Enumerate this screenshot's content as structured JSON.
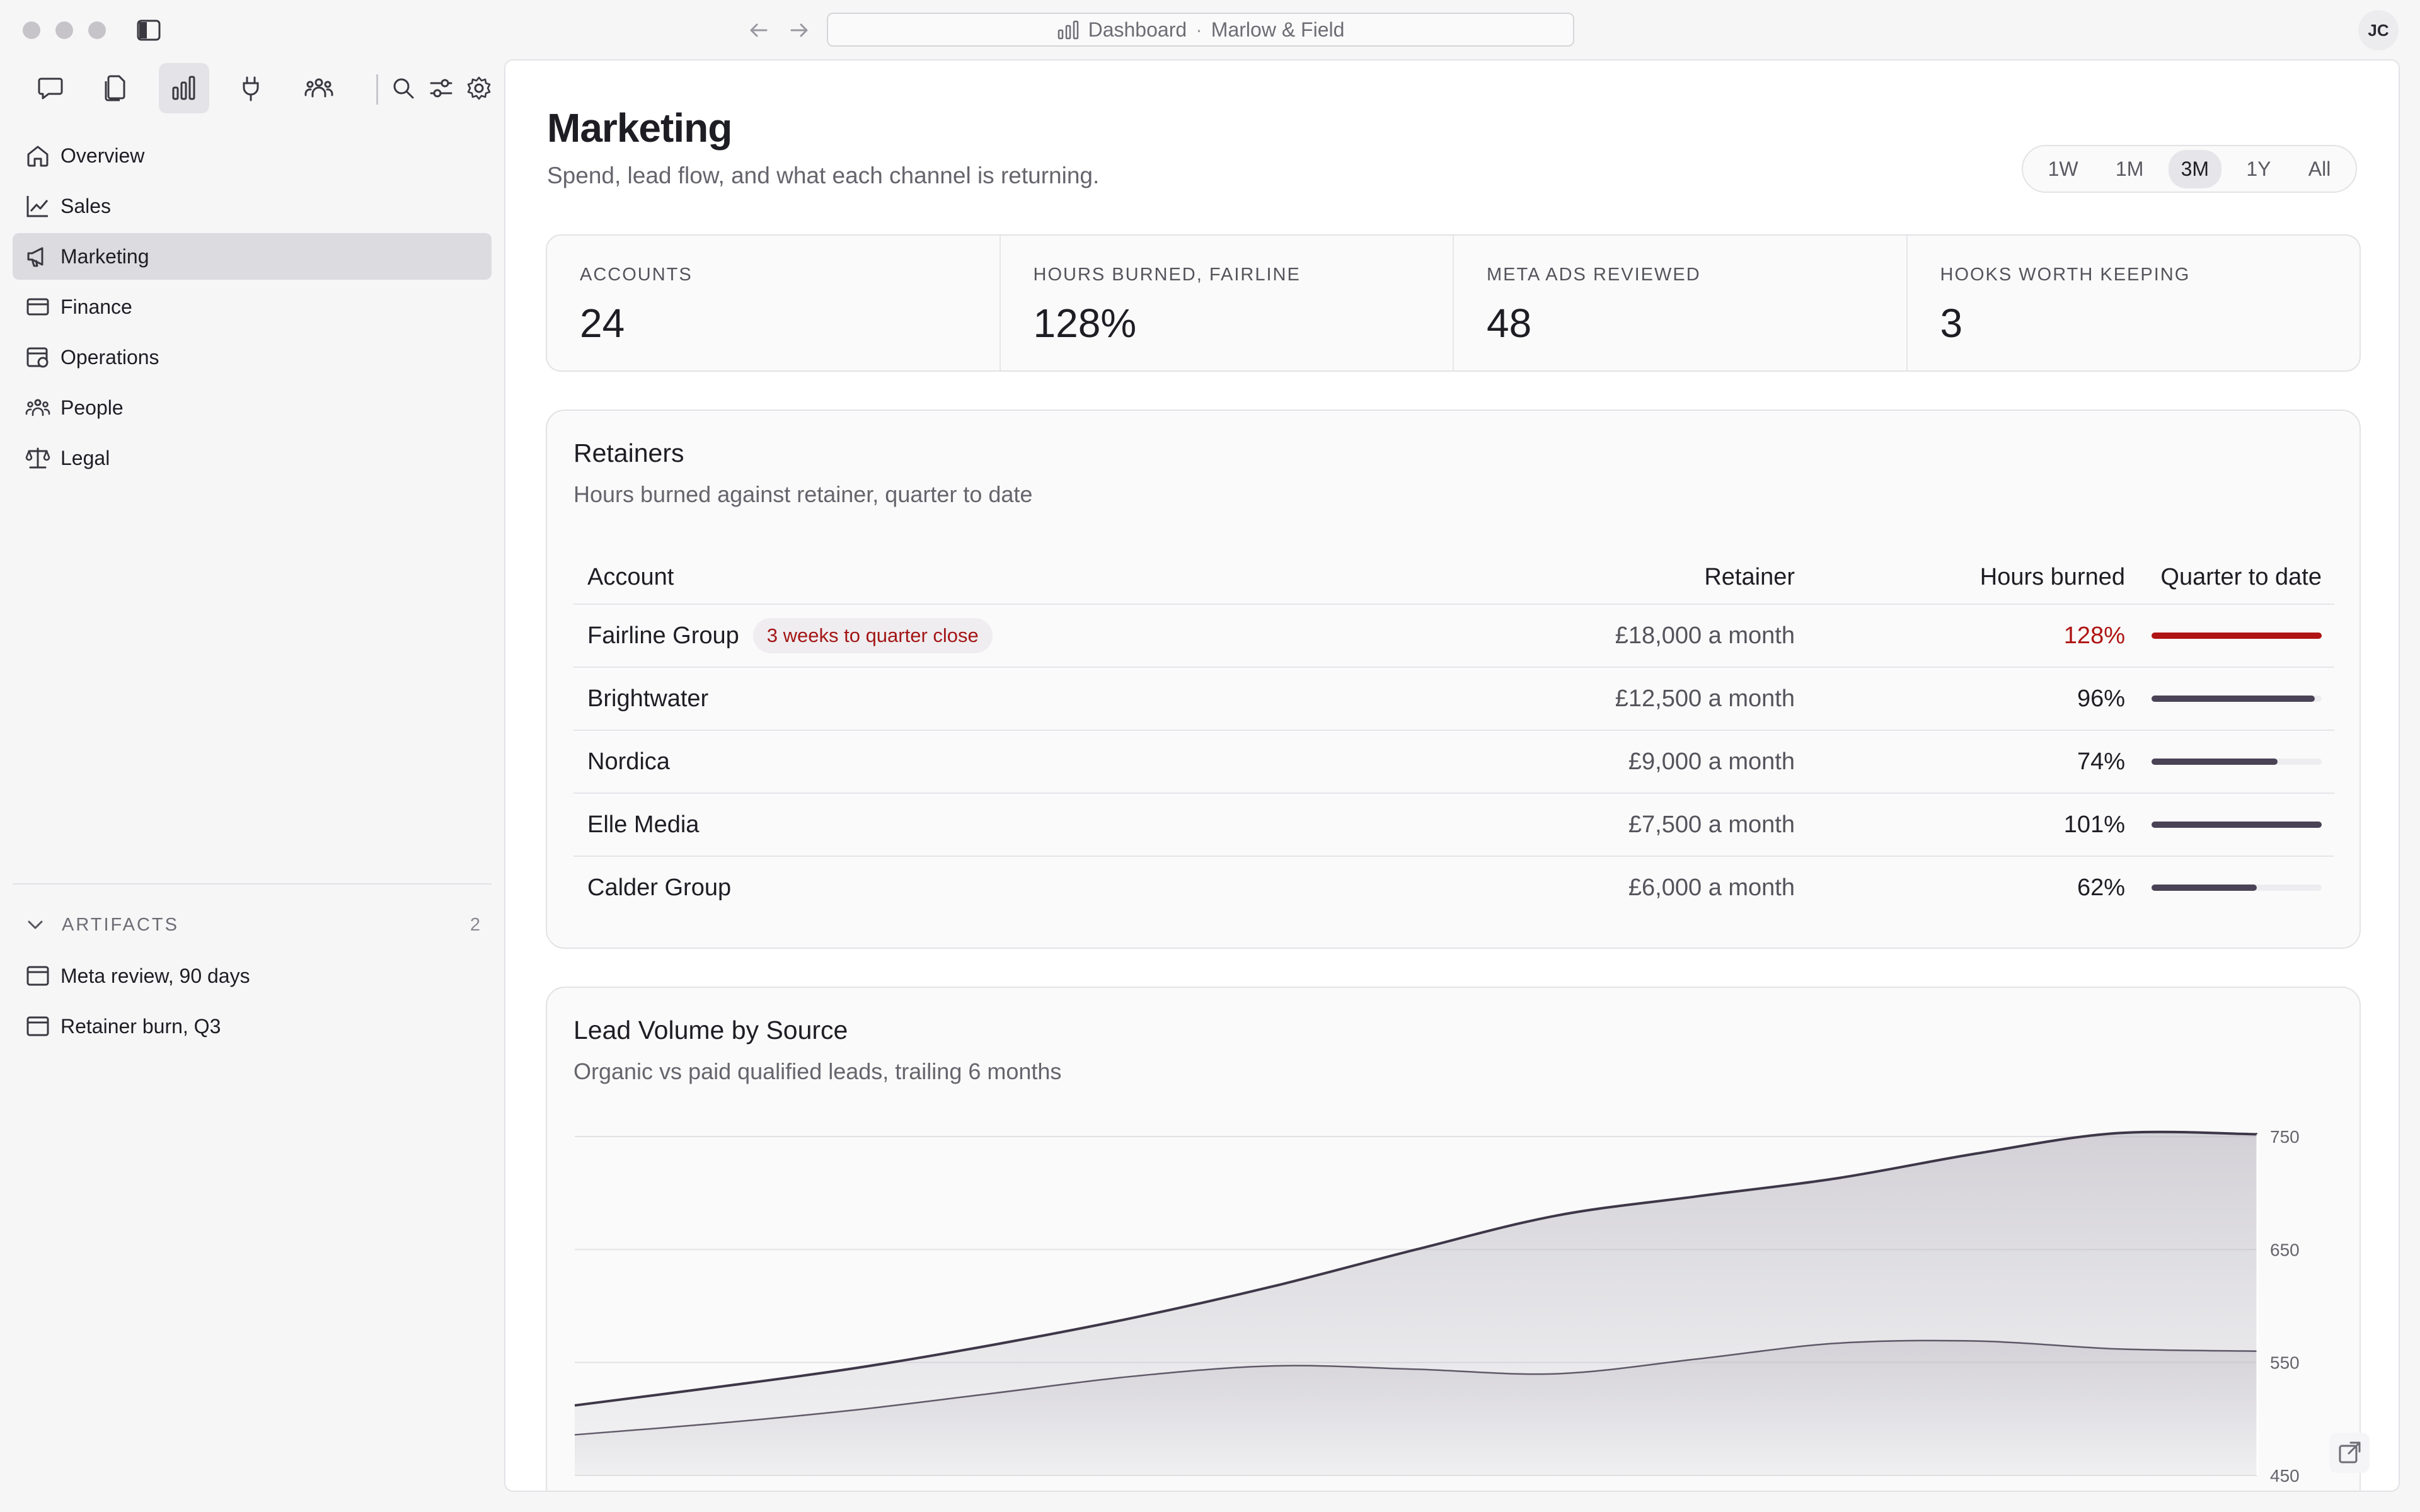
{
  "window": {
    "address_title": "Dashboard",
    "address_workspace": "Marlow & Field",
    "address_separator": "·",
    "avatar_initials": "JC"
  },
  "toolbar": {
    "icons": [
      "chat-icon",
      "documents-icon",
      "chart-icon",
      "plug-icon",
      "team-icon"
    ],
    "active": "chart-icon",
    "utility_icons": [
      "search-icon",
      "sliders-icon",
      "gear-icon"
    ]
  },
  "sidebar": {
    "items": [
      {
        "label": "Overview",
        "icon": "home-icon"
      },
      {
        "label": "Sales",
        "icon": "trend-icon"
      },
      {
        "label": "Marketing",
        "icon": "megaphone-icon",
        "active": true
      },
      {
        "label": "Finance",
        "icon": "card-icon"
      },
      {
        "label": "Operations",
        "icon": "operations-icon"
      },
      {
        "label": "People",
        "icon": "people-icon"
      },
      {
        "label": "Legal",
        "icon": "scales-icon"
      }
    ],
    "artifacts": {
      "heading": "ARTIFACTS",
      "count": "2",
      "items": [
        {
          "label": "Meta review, 90 days"
        },
        {
          "label": "Retainer burn, Q3"
        }
      ]
    }
  },
  "page": {
    "title": "Marketing",
    "subtitle": "Spend, lead flow, and what each channel is returning.",
    "ranges": [
      "1W",
      "1M",
      "3M",
      "1Y",
      "All"
    ],
    "active_range": "3M"
  },
  "stats": [
    {
      "label": "ACCOUNTS",
      "value": "24"
    },
    {
      "label": "HOURS BURNED, FAIRLINE",
      "value": "128%"
    },
    {
      "label": "META ADS REVIEWED",
      "value": "48"
    },
    {
      "label": "HOOKS WORTH KEEPING",
      "value": "3"
    }
  ],
  "retainers": {
    "title": "Retainers",
    "subtitle": "Hours burned against retainer, quarter to date",
    "columns": {
      "account": "Account",
      "retainer": "Retainer",
      "hours": "Hours burned",
      "quarter": "Quarter to date"
    },
    "rows": [
      {
        "account": "Fairline Group",
        "badge": "3 weeks to quarter close",
        "retainer": "£18,000 a month",
        "hours": "128%",
        "burn": 1.28,
        "over": true
      },
      {
        "account": "Brightwater",
        "retainer": "£12,500 a month",
        "hours": "96%",
        "burn": 0.96,
        "over": false
      },
      {
        "account": "Nordica",
        "retainer": "£9,000 a month",
        "hours": "74%",
        "burn": 0.74,
        "over": false
      },
      {
        "account": "Elle Media",
        "retainer": "£7,500 a month",
        "hours": "101%",
        "burn": 1.01,
        "over": false
      },
      {
        "account": "Calder Group",
        "retainer": "£6,000 a month",
        "hours": "62%",
        "burn": 0.62,
        "over": false
      }
    ],
    "colors": {
      "bar": "#4a4356",
      "over": "#b01414"
    }
  },
  "lead_chart": {
    "title": "Lead Volume by Source",
    "subtitle": "Organic vs paid qualified leads, trailing 6 months"
  },
  "chart_data": {
    "type": "area",
    "x": [
      1,
      2,
      3,
      4,
      5,
      6,
      7,
      8,
      9,
      10,
      11,
      12,
      13
    ],
    "series": [
      {
        "values": [
          512,
          528,
          545,
          566,
          590,
          618,
          650,
          680,
          697,
          713,
          735,
          753,
          752
        ]
      },
      {
        "values": [
          486,
          496,
          508,
          523,
          538,
          547,
          544,
          540,
          553,
          567,
          569,
          562,
          560
        ]
      }
    ],
    "ylim": [
      450,
      750
    ],
    "yticks": [
      750,
      650,
      550,
      450
    ],
    "grid": true,
    "colors": {
      "line": "#3e3748",
      "fill": "#b9b6c0",
      "grid": "#e3e2e6"
    }
  }
}
